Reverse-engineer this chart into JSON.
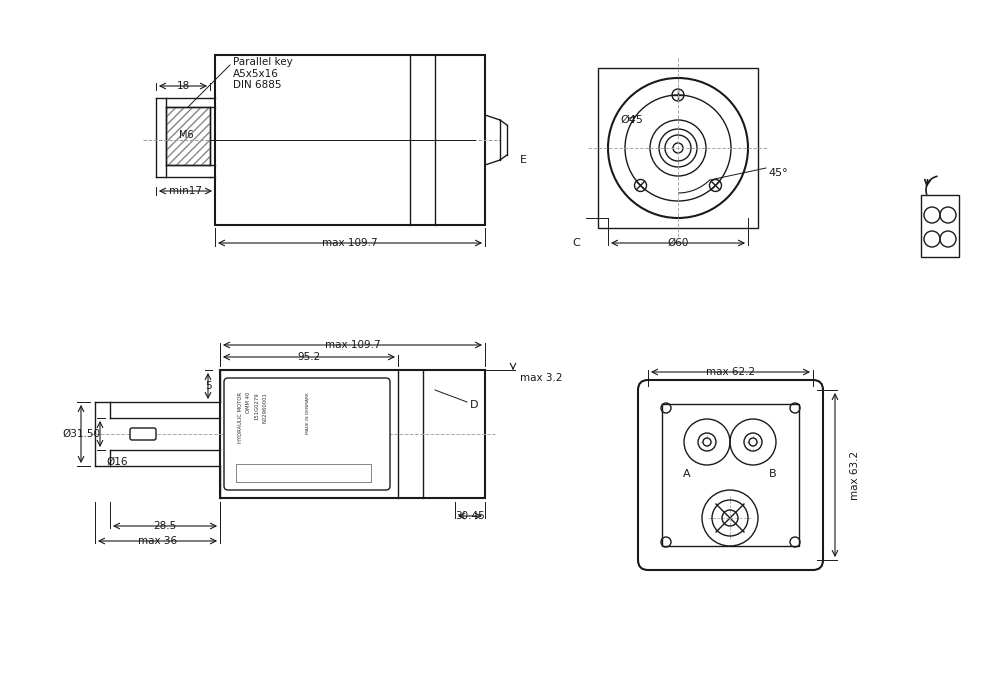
{
  "bg_color": "#ffffff",
  "line_color": "#1a1a1a",
  "dim_color": "#1a1a1a",
  "annotations": {
    "parallel_key": "Parallel key\nA5x5x16\nDIN 6885",
    "dim_18": "18",
    "dim_M6": "M6",
    "dim_min17": "min17",
    "dim_max1097_top": "max 109.7",
    "label_E": "E",
    "dim_phi45": "Ø45",
    "dim_phi60": "Ø60",
    "dim_45deg": "45°",
    "label_C": "C",
    "dim_max1097_bot": "max 109.7",
    "dim_952": "95.2",
    "dim_max32": "max 3.2",
    "dim_5": "5",
    "label_D": "D",
    "dim_3150": "Ø31.50",
    "dim_phi16": "Ø16",
    "dim_285": "28.5",
    "dim_max36": "max 36",
    "dim_3045": "30.45",
    "dim_max622": "max 62.2",
    "dim_max632": "max 63.2",
    "label_A": "A",
    "label_B": "B"
  }
}
